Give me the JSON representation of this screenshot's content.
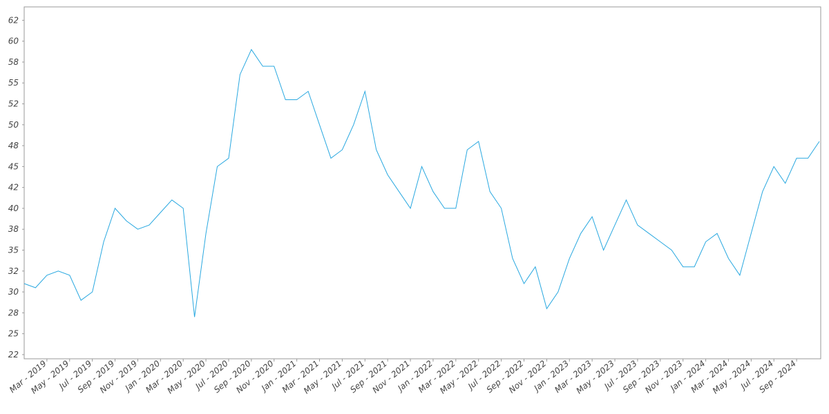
{
  "chart_data": {
    "type": "line",
    "x": [
      "2019-01",
      "2019-02",
      "2019-03",
      "2019-04",
      "2019-05",
      "2019-06",
      "2019-07",
      "2019-08",
      "2019-09",
      "2019-10",
      "2019-11",
      "2019-12",
      "2020-01",
      "2020-02",
      "2020-03",
      "2020-04",
      "2020-05",
      "2020-06",
      "2020-07",
      "2020-08",
      "2020-09",
      "2020-10",
      "2020-11",
      "2020-12",
      "2021-01",
      "2021-02",
      "2021-03",
      "2021-04",
      "2021-05",
      "2021-06",
      "2021-07",
      "2021-08",
      "2021-09",
      "2021-10",
      "2021-11",
      "2021-12",
      "2022-01",
      "2022-02",
      "2022-03",
      "2022-04",
      "2022-05",
      "2022-06",
      "2022-07",
      "2022-08",
      "2022-09",
      "2022-10",
      "2022-11",
      "2022-12",
      "2023-01",
      "2023-02",
      "2023-03",
      "2023-04",
      "2023-05",
      "2023-06",
      "2023-07",
      "2023-08",
      "2023-09",
      "2023-10",
      "2023-11",
      "2023-12",
      "2024-01",
      "2024-02",
      "2024-03",
      "2024-04",
      "2024-05",
      "2024-06",
      "2024-07",
      "2024-08",
      "2024-09",
      "2024-10",
      "2024-11"
    ],
    "series": [
      {
        "color": "#29a8e0",
        "values": [
          31,
          30.5,
          32,
          32.5,
          32,
          29,
          30,
          36,
          40,
          38.5,
          37.5,
          38,
          39.5,
          41,
          40,
          27,
          37,
          45,
          46,
          56,
          59,
          57,
          57,
          53,
          53,
          54,
          50,
          46,
          47,
          50,
          54,
          47,
          44,
          42,
          40,
          45,
          42,
          40,
          40,
          47,
          48,
          42,
          40,
          34,
          31,
          33,
          28,
          30,
          34,
          37,
          39,
          35,
          38,
          41,
          38,
          37,
          36,
          35,
          33,
          33,
          36,
          37,
          34,
          32,
          37,
          42,
          45,
          43,
          46,
          46,
          48
        ]
      }
    ],
    "xlim": [
      "2019-01",
      "2024-11"
    ],
    "xticks": [
      {
        "value": "2019-03",
        "label": "Mar - 2019"
      },
      {
        "value": "2019-05",
        "label": "May - 2019"
      },
      {
        "value": "2019-07",
        "label": "Jul - 2019"
      },
      {
        "value": "2019-09",
        "label": "Sep - 2019"
      },
      {
        "value": "2019-11",
        "label": "Nov - 2019"
      },
      {
        "value": "2020-01",
        "label": "Jan - 2020"
      },
      {
        "value": "2020-03",
        "label": "Mar - 2020"
      },
      {
        "value": "2020-05",
        "label": "May - 2020"
      },
      {
        "value": "2020-07",
        "label": "Jul - 2020"
      },
      {
        "value": "2020-09",
        "label": "Sep - 2020"
      },
      {
        "value": "2020-11",
        "label": "Nov - 2020"
      },
      {
        "value": "2021-01",
        "label": "Jan - 2021"
      },
      {
        "value": "2021-03",
        "label": "Mar - 2021"
      },
      {
        "value": "2021-05",
        "label": "May - 2021"
      },
      {
        "value": "2021-07",
        "label": "Jul - 2021"
      },
      {
        "value": "2021-09",
        "label": "Sep - 2021"
      },
      {
        "value": "2021-11",
        "label": "Nov - 2021"
      },
      {
        "value": "2022-01",
        "label": "Jan - 2022"
      },
      {
        "value": "2022-03",
        "label": "Mar - 2022"
      },
      {
        "value": "2022-05",
        "label": "May - 2022"
      },
      {
        "value": "2022-07",
        "label": "Jul - 2022"
      },
      {
        "value": "2022-09",
        "label": "Sep - 2022"
      },
      {
        "value": "2022-11",
        "label": "Nov - 2022"
      },
      {
        "value": "2023-01",
        "label": "Jan - 2023"
      },
      {
        "value": "2023-03",
        "label": "Mar - 2023"
      },
      {
        "value": "2023-05",
        "label": "May - 2023"
      },
      {
        "value": "2023-07",
        "label": "Jul - 2023"
      },
      {
        "value": "2023-09",
        "label": "Sep - 2023"
      },
      {
        "value": "2023-11",
        "label": "Nov - 2023"
      },
      {
        "value": "2024-01",
        "label": "Jan - 2024"
      },
      {
        "value": "2024-03",
        "label": "Mar - 2024"
      },
      {
        "value": "2024-05",
        "label": "May - 2024"
      },
      {
        "value": "2024-07",
        "label": "Jul - 2024"
      },
      {
        "value": "2024-09",
        "label": "Sep - 2024"
      }
    ],
    "ylim": [
      22,
      64.1
    ],
    "yticks": [
      {
        "value": 22.5,
        "label": "22"
      },
      25,
      {
        "value": 27.5,
        "label": "28"
      },
      30,
      {
        "value": 32.5,
        "label": "32"
      },
      35,
      {
        "value": 37.5,
        "label": "38"
      },
      40,
      {
        "value": 42.5,
        "label": "42"
      },
      45,
      {
        "value": 47.5,
        "label": "48"
      },
      50,
      {
        "value": 52.5,
        "label": "52"
      },
      55,
      {
        "value": 57.5,
        "label": "58"
      },
      60,
      {
        "value": 62.5,
        "label": "62"
      }
    ],
    "grid": false
  }
}
